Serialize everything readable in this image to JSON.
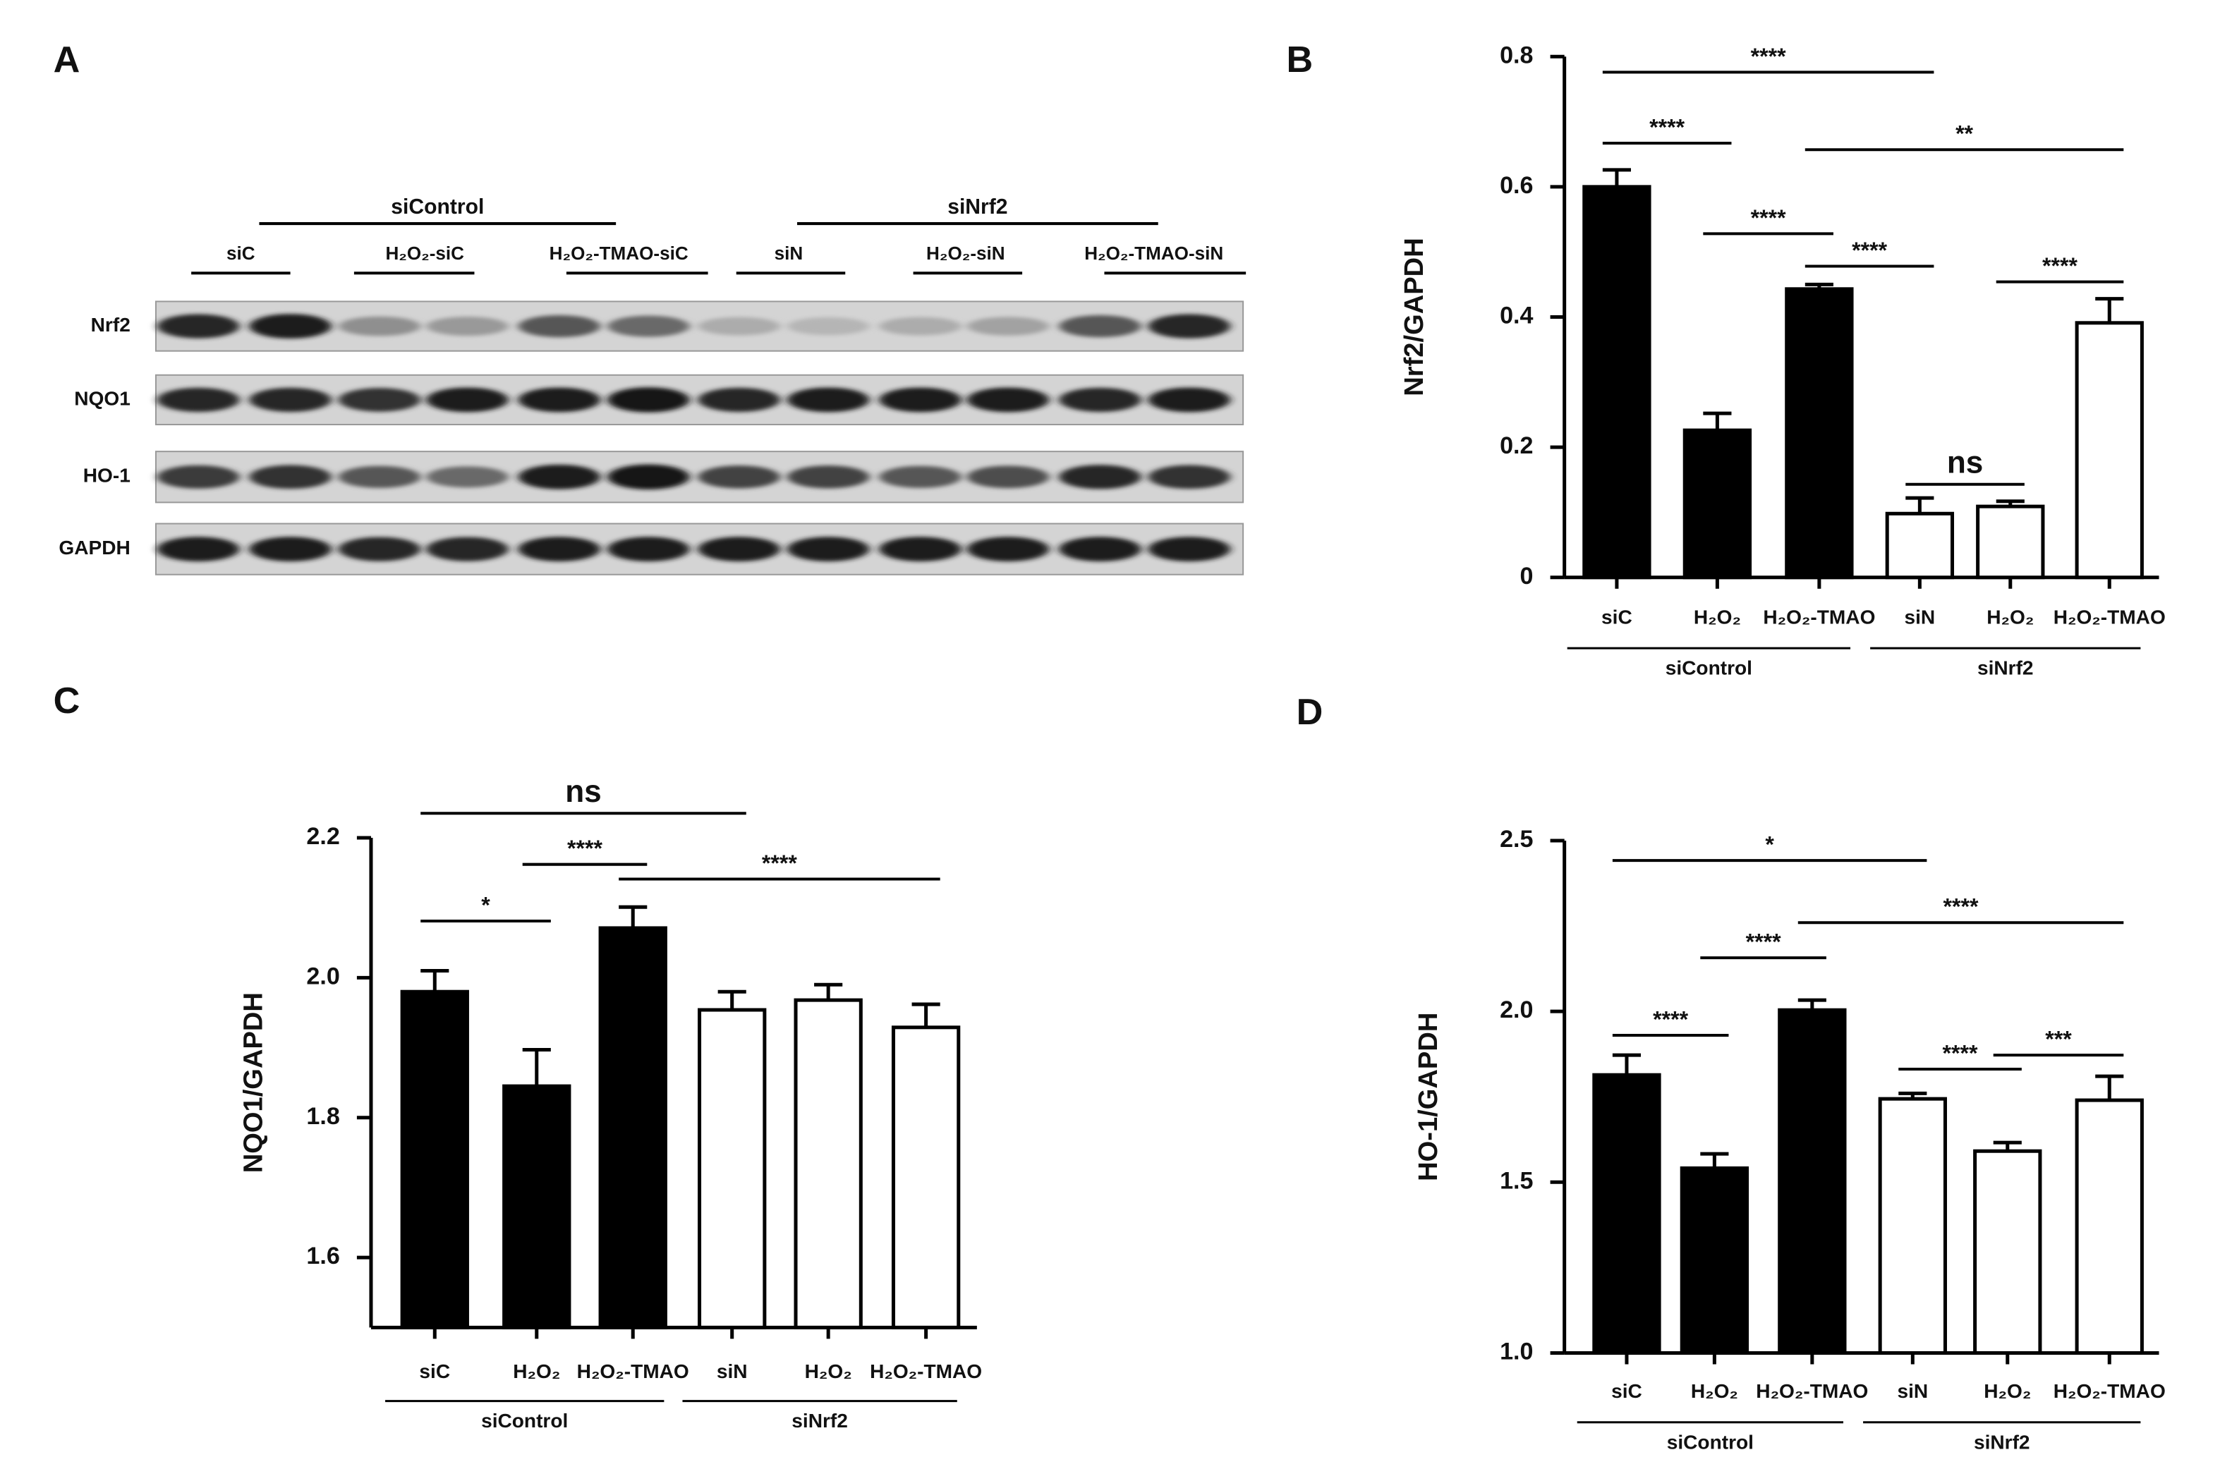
{
  "blot": {
    "panel_label": "A",
    "groups": [
      "siControl",
      "siNrf2"
    ],
    "lanes": [
      "siC",
      "H₂O₂-siC",
      "H₂O₂-TMAO-siC",
      "siN",
      "H₂O₂-siN",
      "H₂O₂-TMAO-siN"
    ],
    "rows": [
      "Nrf2",
      "NQO1",
      "HO-1",
      "GAPDH"
    ]
  },
  "chart_data": [
    {
      "type": "bar",
      "panel_label": "B",
      "ylabel": "Nrf2/GAPDH",
      "categories": [
        "siC",
        "H₂O₂",
        "H₂O₂-TMAO",
        "siN",
        "H₂O₂",
        "H₂O₂-TMAO"
      ],
      "values": [
        0.6,
        0.226,
        0.443,
        0.098,
        0.109,
        0.391
      ],
      "errors": [
        0.026,
        0.026,
        0.007,
        0.024,
        0.008,
        0.037
      ],
      "colors": [
        "#000000",
        "#000000",
        "#000000",
        "#ffffff",
        "#ffffff",
        "#ffffff"
      ],
      "groups": [
        {
          "label": "siControl",
          "from": 0,
          "to": 2
        },
        {
          "label": "siNrf2",
          "from": 3,
          "to": 5
        }
      ],
      "annotations": [
        {
          "label": "****",
          "from": 0,
          "to": 3
        },
        {
          "label": "****",
          "from": 0,
          "to": 1
        },
        {
          "label": "**",
          "from": 2,
          "to": 5
        },
        {
          "label": "****",
          "from": 1,
          "to": 2
        },
        {
          "label": "****",
          "from": 2,
          "to": 3
        },
        {
          "label": "****",
          "from": 4,
          "to": 5
        },
        {
          "label": "ns",
          "from": 3,
          "to": 4
        }
      ],
      "ylim": [
        0,
        0.8
      ],
      "yticks": [
        0,
        0.2,
        0.4,
        0.6,
        0.8
      ]
    },
    {
      "type": "bar",
      "panel_label": "C",
      "ylabel": "NQO1/GAPDH",
      "categories": [
        "siC",
        "H₂O₂",
        "H₂O₂-TMAO",
        "siN",
        "H₂O₂",
        "H₂O₂-TMAO"
      ],
      "values": [
        1.98,
        1.845,
        2.071,
        1.954,
        1.968,
        1.929
      ],
      "errors": [
        0.03,
        0.052,
        0.03,
        0.026,
        0.022,
        0.033
      ],
      "colors": [
        "#000000",
        "#000000",
        "#000000",
        "#ffffff",
        "#ffffff",
        "#ffffff"
      ],
      "groups": [
        {
          "label": "siControl",
          "from": 0,
          "to": 2
        },
        {
          "label": "siNrf2",
          "from": 3,
          "to": 5
        }
      ],
      "annotations": [
        {
          "label": "ns",
          "from": 0,
          "to": 3
        },
        {
          "label": "****",
          "from": 1,
          "to": 2
        },
        {
          "label": "****",
          "from": 2,
          "to": 5
        },
        {
          "label": "*",
          "from": 0,
          "to": 1
        }
      ],
      "ylim": [
        1.5,
        2.2
      ],
      "yticks": [
        1.6,
        1.8,
        {
          "value": 2,
          "label": "2.0"
        },
        2.2
      ]
    },
    {
      "type": "bar",
      "panel_label": "D",
      "ylabel": "HO-1/GAPDH",
      "categories": [
        "siC",
        "H₂O₂",
        "H₂O₂-TMAO",
        "siN",
        "H₂O₂",
        "H₂O₂-TMAO"
      ],
      "values": [
        1.814,
        1.541,
        2.004,
        1.744,
        1.591,
        1.74
      ],
      "errors": [
        0.058,
        0.042,
        0.029,
        0.016,
        0.025,
        0.07
      ],
      "colors": [
        "#000000",
        "#000000",
        "#000000",
        "#ffffff",
        "#ffffff",
        "#ffffff"
      ],
      "groups": [
        {
          "label": "siControl",
          "from": 0,
          "to": 2
        },
        {
          "label": "siNrf2",
          "from": 3,
          "to": 5
        }
      ],
      "annotations": [
        {
          "label": "*",
          "from": 0,
          "to": 3
        },
        {
          "label": "****",
          "from": 2,
          "to": 5
        },
        {
          "label": "****",
          "from": 1,
          "to": 2
        },
        {
          "label": "****",
          "from": 0,
          "to": 1
        },
        {
          "label": "***",
          "from": 4,
          "to": 5
        },
        {
          "label": "****",
          "from": 3,
          "to": 4
        }
      ],
      "ylim": [
        1,
        2.5
      ],
      "yticks": [
        {
          "value": 1,
          "label": "1.0"
        },
        1.5,
        {
          "value": 2,
          "label": "2.0"
        },
        2.5
      ]
    }
  ]
}
